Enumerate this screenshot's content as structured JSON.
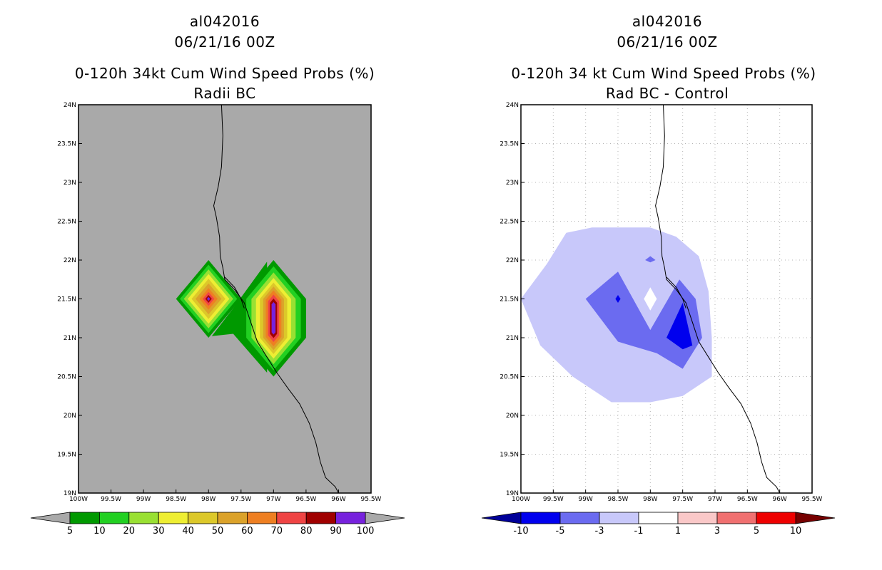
{
  "left_panel": {
    "storm_id": "al042016",
    "datetime": "06/21/16 00Z",
    "title": "0-120h 34kt Cum Wind Speed Probs (%)",
    "subtitle": "Radii BC"
  },
  "right_panel": {
    "storm_id": "al042016",
    "datetime": "06/21/16 00Z",
    "title": "0-120h 34 kt Cum Wind Speed Probs (%)",
    "subtitle": "Rad BC - Control"
  },
  "chart_data": [
    {
      "type": "heatmap",
      "panel": "left",
      "title": "0-120h 34kt Cum Wind Speed Probs (%)",
      "subtitle": "Radii BC",
      "xlim": [
        -100,
        -95.5
      ],
      "ylim": [
        19,
        24
      ],
      "x_ticks": [
        "100W",
        "99.5W",
        "99W",
        "98.5W",
        "98W",
        "97.5W",
        "97W",
        "96.5W",
        "96W",
        "95.5W"
      ],
      "y_ticks": [
        "19N",
        "19.5N",
        "20N",
        "20.5N",
        "21N",
        "21.5N",
        "22N",
        "22.5N",
        "23N",
        "23.5N",
        "24N"
      ],
      "grid": false,
      "background_color": "#a9a9a9",
      "colorbar": {
        "levels": [
          "5",
          "10",
          "20",
          "30",
          "40",
          "50",
          "60",
          "70",
          "80",
          "90",
          "100"
        ],
        "colors": [
          "#009900",
          "#22d022",
          "#99e033",
          "#eeee33",
          "#dcc82a",
          "#dba22a",
          "#ee7f22",
          "#ef4444",
          "#a00000",
          "#7722dd"
        ],
        "end_colors": [
          "#a9a9a9",
          "#a9a9a9"
        ]
      },
      "features": [
        {
          "name": "western maximum",
          "center_lon": -98.0,
          "center_lat": 21.5,
          "max_prob": 100
        },
        {
          "name": "eastern maximum",
          "center_lon": -97.0,
          "center_lat": 21.25,
          "max_prob": 100
        }
      ]
    },
    {
      "type": "heatmap",
      "panel": "right",
      "title": "0-120h 34 kt Cum Wind Speed Probs (%)",
      "subtitle": "Rad BC - Control",
      "xlim": [
        -100,
        -95.5
      ],
      "ylim": [
        19,
        24
      ],
      "x_ticks": [
        "100W",
        "99.5W",
        "99W",
        "98.5W",
        "98W",
        "97.5W",
        "97W",
        "96.5W",
        "96W",
        "95.5W"
      ],
      "y_ticks": [
        "19N",
        "19.5N",
        "20N",
        "20.5N",
        "21N",
        "21.5N",
        "22N",
        "22.5N",
        "23N",
        "23.5N",
        "24N"
      ],
      "grid": true,
      "background_color": "#ffffff",
      "colorbar": {
        "levels": [
          "-10",
          "-5",
          "-3",
          "-1",
          "1",
          "3",
          "5",
          "10"
        ],
        "colors": [
          "#0000ee",
          "#6b6bf0",
          "#c8c8fa",
          "#ffffff",
          "#fac8c8",
          "#f07070",
          "#ee0000"
        ],
        "end_colors": [
          "#000099",
          "#770000"
        ]
      },
      "features": [
        {
          "name": "outer negative region",
          "min_diff": -3,
          "max_diff": -1
        },
        {
          "name": "inner negative region",
          "min_diff": -5,
          "max_diff": -3
        },
        {
          "name": "strongest negative",
          "center_lon": -97.5,
          "center_lat": 21.1,
          "min_diff": -10
        }
      ]
    }
  ]
}
